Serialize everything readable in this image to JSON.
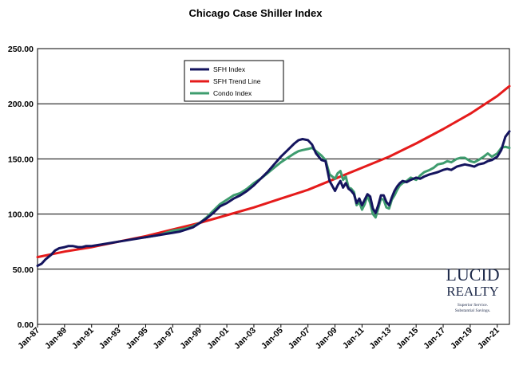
{
  "chart_data": {
    "type": "line",
    "title": "Chicago Case Shiller Index",
    "xlabel": "",
    "ylabel": "",
    "x_range": [
      1987.0,
      2021.9
    ],
    "ylim": [
      0,
      250
    ],
    "y_ticks": [
      0,
      50,
      100,
      150,
      200,
      250
    ],
    "y_tick_labels": [
      "0.00",
      "50.00",
      "100.00",
      "150.00",
      "200.00",
      "250.00"
    ],
    "x_ticks": [
      {
        "x": 1987,
        "label": "Jan-87"
      },
      {
        "x": 1989,
        "label": "Jan-89"
      },
      {
        "x": 1991,
        "label": "Jan-91"
      },
      {
        "x": 1993,
        "label": "Jan-93"
      },
      {
        "x": 1995,
        "label": "Jan-95"
      },
      {
        "x": 1997,
        "label": "Jan-97"
      },
      {
        "x": 1999,
        "label": "Jan-99"
      },
      {
        "x": 2001,
        "label": "Jan-01"
      },
      {
        "x": 2003,
        "label": "Jan-03"
      },
      {
        "x": 2005,
        "label": "Jan-05"
      },
      {
        "x": 2007,
        "label": "Jan-07"
      },
      {
        "x": 2009,
        "label": "Jan-09"
      },
      {
        "x": 2011,
        "label": "Jan-11"
      },
      {
        "x": 2013,
        "label": "Jan-13"
      },
      {
        "x": 2015,
        "label": "Jan-15"
      },
      {
        "x": 2017,
        "label": "Jan-17"
      },
      {
        "x": 2019,
        "label": "Jan-19"
      },
      {
        "x": 2021,
        "label": "Jan-21"
      }
    ],
    "grid": "horizontal",
    "legend_position": "top-center",
    "series": [
      {
        "name": "SFH Index",
        "color": "#14145e",
        "x": [
          1987.0,
          1987.3,
          1987.6,
          1988.0,
          1988.3,
          1988.6,
          1989.0,
          1989.3,
          1989.6,
          1990.0,
          1990.3,
          1990.6,
          1991.0,
          1991.5,
          1992.0,
          1992.5,
          1993.0,
          1993.5,
          1994.0,
          1994.5,
          1995.0,
          1995.5,
          1996.0,
          1996.5,
          1997.0,
          1997.5,
          1998.0,
          1998.5,
          1999.0,
          1999.5,
          2000.0,
          2000.5,
          2001.0,
          2001.5,
          2002.0,
          2002.5,
          2003.0,
          2003.5,
          2004.0,
          2004.5,
          2005.0,
          2005.5,
          2006.0,
          2006.3,
          2006.6,
          2007.0,
          2007.3,
          2007.6,
          2008.0,
          2008.3,
          2008.6,
          2009.0,
          2009.2,
          2009.4,
          2009.6,
          2009.8,
          2010.0,
          2010.2,
          2010.4,
          2010.6,
          2010.8,
          2011.0,
          2011.2,
          2011.4,
          2011.6,
          2011.8,
          2012.0,
          2012.2,
          2012.4,
          2012.6,
          2012.8,
          2013.0,
          2013.2,
          2013.4,
          2013.6,
          2013.8,
          2014.0,
          2014.3,
          2014.6,
          2015.0,
          2015.3,
          2015.6,
          2016.0,
          2016.3,
          2016.6,
          2017.0,
          2017.3,
          2017.6,
          2018.0,
          2018.3,
          2018.6,
          2019.0,
          2019.3,
          2019.6,
          2020.0,
          2020.3,
          2020.6,
          2021.0,
          2021.3,
          2021.6,
          2021.9
        ],
        "values": [
          53,
          55,
          59,
          63,
          67,
          69,
          70,
          71,
          71,
          70,
          70,
          71,
          71,
          72,
          73,
          74,
          75,
          76,
          77,
          78,
          79,
          80,
          81,
          82,
          83,
          84,
          86,
          88,
          92,
          96,
          101,
          107,
          110,
          114,
          117,
          121,
          126,
          132,
          138,
          145,
          152,
          158,
          164,
          167,
          168,
          167,
          163,
          155,
          149,
          148,
          130,
          121,
          126,
          130,
          124,
          128,
          123,
          121,
          118,
          110,
          114,
          108,
          113,
          118,
          116,
          105,
          101,
          108,
          117,
          117,
          111,
          108,
          115,
          121,
          125,
          128,
          130,
          129,
          131,
          133,
          132,
          134,
          136,
          137,
          138,
          140,
          141,
          140,
          143,
          144,
          145,
          144,
          143,
          145,
          146,
          148,
          149,
          152,
          158,
          170,
          175
        ]
      },
      {
        "name": "SFH Trend Line",
        "color": "#e51b1b",
        "x": [
          1987.0,
          1989.0,
          1991.0,
          1993.0,
          1995.0,
          1997.0,
          1999.0,
          2001.0,
          2003.0,
          2005.0,
          2007.0,
          2009.0,
          2011.0,
          2013.0,
          2015.0,
          2017.0,
          2019.0,
          2021.0,
          2021.9
        ],
        "values": [
          61,
          66,
          70,
          75,
          80,
          86,
          92,
          99,
          106,
          114,
          122,
          132,
          142,
          152,
          164,
          177,
          191,
          207,
          216
        ]
      },
      {
        "name": "Condo Index",
        "color": "#3e9c6e",
        "x": [
          1995.0,
          1995.5,
          1996.0,
          1996.5,
          1997.0,
          1997.5,
          1998.0,
          1998.5,
          1999.0,
          1999.5,
          2000.0,
          2000.5,
          2001.0,
          2001.5,
          2002.0,
          2002.5,
          2003.0,
          2003.5,
          2004.0,
          2004.5,
          2005.0,
          2005.5,
          2006.0,
          2006.3,
          2006.6,
          2007.0,
          2007.3,
          2007.6,
          2008.0,
          2008.3,
          2008.6,
          2009.0,
          2009.2,
          2009.4,
          2009.6,
          2009.8,
          2010.0,
          2010.2,
          2010.4,
          2010.6,
          2010.8,
          2011.0,
          2011.2,
          2011.4,
          2011.6,
          2011.8,
          2012.0,
          2012.2,
          2012.4,
          2012.6,
          2012.8,
          2013.0,
          2013.2,
          2013.4,
          2013.6,
          2013.8,
          2014.0,
          2014.3,
          2014.6,
          2015.0,
          2015.3,
          2015.6,
          2016.0,
          2016.3,
          2016.6,
          2017.0,
          2017.3,
          2017.6,
          2018.0,
          2018.3,
          2018.6,
          2019.0,
          2019.3,
          2019.6,
          2020.0,
          2020.3,
          2020.6,
          2021.0,
          2021.3,
          2021.6,
          2021.9
        ],
        "values": [
          79,
          80,
          81,
          83,
          85,
          86,
          87,
          89,
          92,
          97,
          103,
          109,
          113,
          117,
          119,
          123,
          128,
          132,
          137,
          142,
          147,
          151,
          155,
          157,
          158,
          159,
          160,
          157,
          153,
          149,
          136,
          132,
          137,
          139,
          131,
          134,
          124,
          123,
          120,
          108,
          111,
          104,
          109,
          117,
          110,
          100,
          97,
          105,
          114,
          113,
          106,
          105,
          113,
          117,
          122,
          126,
          128,
          130,
          133,
          131,
          135,
          138,
          140,
          142,
          145,
          146,
          148,
          147,
          150,
          151,
          151,
          148,
          147,
          149,
          152,
          155,
          152,
          155,
          160,
          161,
          160
        ]
      }
    ]
  },
  "watermark": {
    "brand_line1": "LUCID",
    "brand_line2": "REALTY",
    "tagline1": "Superior Service.",
    "tagline2": "Substantial Savings."
  }
}
